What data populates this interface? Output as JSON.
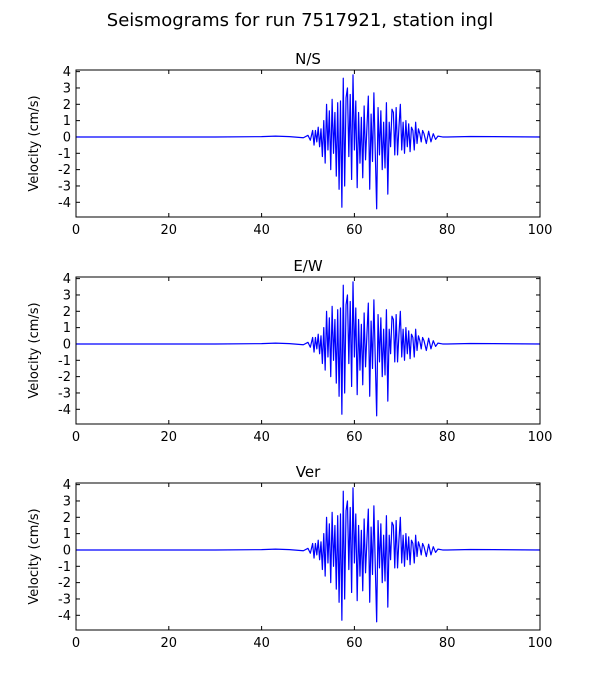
{
  "title": "Seismograms for run 7517921, station ingl",
  "chart_data": [
    {
      "type": "line",
      "title": "N/S",
      "xlabel": "",
      "ylabel": "Velocity (cm/s)",
      "xlim": [
        0,
        100
      ],
      "ylim": [
        -4.9,
        4.1
      ],
      "xticks": [
        0,
        20,
        40,
        60,
        80,
        100
      ],
      "yticks": [
        4,
        3,
        2,
        1,
        0,
        -1,
        -2,
        -3,
        -4
      ],
      "color": "#0000ff",
      "series": [
        {
          "x": [
            0,
            10,
            20,
            30,
            40,
            43,
            46,
            49,
            50,
            50.5,
            51,
            51.3,
            51.6,
            51.9,
            52.2,
            52.5,
            52.8,
            53.1,
            53.4,
            53.7,
            54,
            54.3,
            54.6,
            54.9,
            55.2,
            55.5,
            55.8,
            56.1,
            56.4,
            56.7,
            57,
            57.3,
            57.6,
            57.9,
            58.2,
            58.5,
            58.8,
            59.1,
            59.4,
            59.7,
            60,
            60.3,
            60.6,
            60.9,
            61.2,
            61.5,
            61.8,
            62.1,
            62.4,
            62.7,
            63,
            63.3,
            63.6,
            63.9,
            64.2,
            64.5,
            64.8,
            65.1,
            65.4,
            65.7,
            66,
            66.3,
            66.6,
            66.9,
            67.2,
            67.5,
            67.8,
            68.1,
            68.4,
            68.7,
            69,
            69.3,
            69.6,
            69.9,
            70.2,
            70.5,
            70.8,
            71.1,
            71.4,
            71.7,
            72,
            72.3,
            72.6,
            72.9,
            73.2,
            73.5,
            73.8,
            74.1,
            74.4,
            74.7,
            75,
            75.5,
            76,
            76.5,
            77,
            77.5,
            78,
            79,
            80,
            85,
            90,
            100
          ],
          "y": [
            0,
            0,
            0,
            0,
            0.02,
            0.05,
            0.02,
            -0.05,
            0.1,
            -0.2,
            0.4,
            -0.5,
            0.4,
            -0.3,
            0.6,
            -0.6,
            0.5,
            -1.2,
            1.0,
            -1.6,
            2.0,
            -0.8,
            1.6,
            -2.0,
            2.3,
            -1.0,
            1.5,
            -2.4,
            2.1,
            -3.2,
            2.2,
            -4.3,
            3.6,
            -3.0,
            2.4,
            3.0,
            -1.2,
            2.6,
            -2.6,
            3.8,
            -0.8,
            2.2,
            -3.1,
            1.5,
            -1.6,
            1.2,
            -2.5,
            1.9,
            -1.4,
            0.6,
            2.5,
            -3.2,
            1.4,
            -1.5,
            2.7,
            -1.0,
            -4.4,
            1.8,
            -1.1,
            1.6,
            -2.0,
            0.9,
            -1.9,
            2.1,
            -3.5,
            0.9,
            -0.6,
            1.7,
            1.5,
            -1.1,
            1.8,
            -1.1,
            0.6,
            2.0,
            -0.8,
            0.9,
            -1.0,
            1.0,
            -0.6,
            0.8,
            -0.9,
            0.6,
            0.4,
            -0.8,
            0.9,
            -0.4,
            0.5,
            0.2,
            -0.3,
            0.4,
            0.2,
            -0.4,
            0.35,
            -0.3,
            0.2,
            -0.15,
            0.05,
            0,
            0,
            0.03,
            0.02,
            0
          ]
        }
      ]
    },
    {
      "type": "line",
      "title": "E/W",
      "xlabel": "",
      "ylabel": "Velocity (cm/s)",
      "xlim": [
        0,
        100
      ],
      "ylim": [
        -4.9,
        4.1
      ],
      "xticks": [
        0,
        20,
        40,
        60,
        80,
        100
      ],
      "yticks": [
        4,
        3,
        2,
        1,
        0,
        -1,
        -2,
        -3,
        -4
      ],
      "color": "#0000ff",
      "series": [
        {
          "x": [
            0,
            10,
            20,
            30,
            40,
            43,
            46,
            49,
            50,
            50.5,
            51,
            51.3,
            51.6,
            51.9,
            52.2,
            52.5,
            52.8,
            53.1,
            53.4,
            53.7,
            54,
            54.3,
            54.6,
            54.9,
            55.2,
            55.5,
            55.8,
            56.1,
            56.4,
            56.7,
            57,
            57.3,
            57.6,
            57.9,
            58.2,
            58.5,
            58.8,
            59.1,
            59.4,
            59.7,
            60,
            60.3,
            60.6,
            60.9,
            61.2,
            61.5,
            61.8,
            62.1,
            62.4,
            62.7,
            63,
            63.3,
            63.6,
            63.9,
            64.2,
            64.5,
            64.8,
            65.1,
            65.4,
            65.7,
            66,
            66.3,
            66.6,
            66.9,
            67.2,
            67.5,
            67.8,
            68.1,
            68.4,
            68.7,
            69,
            69.3,
            69.6,
            69.9,
            70.2,
            70.5,
            70.8,
            71.1,
            71.4,
            71.7,
            72,
            72.3,
            72.6,
            72.9,
            73.2,
            73.5,
            73.8,
            74.1,
            74.4,
            74.7,
            75,
            75.5,
            76,
            76.5,
            77,
            77.5,
            78,
            79,
            80,
            85,
            90,
            100
          ],
          "y": [
            0,
            0,
            0,
            0,
            0.02,
            0.05,
            0.02,
            -0.05,
            0.1,
            -0.2,
            0.4,
            -0.5,
            0.4,
            -0.3,
            0.6,
            -0.6,
            0.5,
            -1.2,
            1.0,
            -1.6,
            2.0,
            -0.8,
            1.6,
            -2.0,
            2.3,
            -1.0,
            1.5,
            -2.4,
            2.1,
            -3.2,
            2.2,
            -4.3,
            3.6,
            -3.0,
            2.4,
            3.0,
            -1.2,
            2.6,
            -2.6,
            3.8,
            -0.8,
            2.2,
            -3.1,
            1.5,
            -1.6,
            1.2,
            -2.5,
            1.9,
            -1.4,
            0.6,
            2.5,
            -3.2,
            1.4,
            -1.5,
            2.7,
            -1.0,
            -4.4,
            1.8,
            -1.1,
            1.6,
            -2.0,
            0.9,
            -1.9,
            2.1,
            -3.5,
            0.9,
            -0.6,
            1.7,
            1.5,
            -1.1,
            1.8,
            -1.1,
            0.6,
            2.0,
            -0.8,
            0.9,
            -1.0,
            1.0,
            -0.6,
            0.8,
            -0.9,
            0.6,
            0.4,
            -0.8,
            0.9,
            -0.4,
            0.5,
            0.2,
            -0.3,
            0.4,
            0.2,
            -0.4,
            0.35,
            -0.3,
            0.2,
            -0.15,
            0.05,
            0,
            0,
            0.03,
            0.02,
            0
          ]
        }
      ]
    },
    {
      "type": "line",
      "title": "Ver",
      "xlabel": "",
      "ylabel": "Velocity (cm/s)",
      "xlim": [
        0,
        100
      ],
      "ylim": [
        -4.9,
        4.1
      ],
      "xticks": [
        0,
        20,
        40,
        60,
        80,
        100
      ],
      "yticks": [
        4,
        3,
        2,
        1,
        0,
        -1,
        -2,
        -3,
        -4
      ],
      "color": "#0000ff",
      "series": [
        {
          "x": [
            0,
            10,
            20,
            30,
            40,
            43,
            46,
            49,
            50,
            50.5,
            51,
            51.3,
            51.6,
            51.9,
            52.2,
            52.5,
            52.8,
            53.1,
            53.4,
            53.7,
            54,
            54.3,
            54.6,
            54.9,
            55.2,
            55.5,
            55.8,
            56.1,
            56.4,
            56.7,
            57,
            57.3,
            57.6,
            57.9,
            58.2,
            58.5,
            58.8,
            59.1,
            59.4,
            59.7,
            60,
            60.3,
            60.6,
            60.9,
            61.2,
            61.5,
            61.8,
            62.1,
            62.4,
            62.7,
            63,
            63.3,
            63.6,
            63.9,
            64.2,
            64.5,
            64.8,
            65.1,
            65.4,
            65.7,
            66,
            66.3,
            66.6,
            66.9,
            67.2,
            67.5,
            67.8,
            68.1,
            68.4,
            68.7,
            69,
            69.3,
            69.6,
            69.9,
            70.2,
            70.5,
            70.8,
            71.1,
            71.4,
            71.7,
            72,
            72.3,
            72.6,
            72.9,
            73.2,
            73.5,
            73.8,
            74.1,
            74.4,
            74.7,
            75,
            75.5,
            76,
            76.5,
            77,
            77.5,
            78,
            79,
            80,
            85,
            90,
            100
          ],
          "y": [
            0,
            0,
            0,
            0,
            0.02,
            0.05,
            0.02,
            -0.05,
            0.1,
            -0.2,
            0.4,
            -0.5,
            0.4,
            -0.3,
            0.6,
            -0.6,
            0.5,
            -1.2,
            1.0,
            -1.6,
            2.0,
            -0.8,
            1.6,
            -2.0,
            2.3,
            -1.0,
            1.5,
            -2.4,
            2.1,
            -3.2,
            2.2,
            -4.3,
            3.6,
            -3.0,
            2.4,
            3.0,
            -1.2,
            2.6,
            -2.6,
            3.8,
            -0.8,
            2.2,
            -3.1,
            1.5,
            -1.6,
            1.2,
            -2.5,
            1.9,
            -1.4,
            0.6,
            2.5,
            -3.2,
            1.4,
            -1.5,
            2.7,
            -1.0,
            -4.4,
            1.8,
            -1.1,
            1.6,
            -2.0,
            0.9,
            -1.9,
            2.1,
            -3.5,
            0.9,
            -0.6,
            1.7,
            1.5,
            -1.1,
            1.8,
            -1.1,
            0.6,
            2.0,
            -0.8,
            0.9,
            -1.0,
            1.0,
            -0.6,
            0.8,
            -0.9,
            0.6,
            0.4,
            -0.8,
            0.9,
            -0.4,
            0.5,
            0.2,
            -0.3,
            0.4,
            0.2,
            -0.4,
            0.35,
            -0.3,
            0.2,
            -0.15,
            0.05,
            0,
            0,
            0.03,
            0.02,
            0
          ]
        }
      ]
    }
  ]
}
